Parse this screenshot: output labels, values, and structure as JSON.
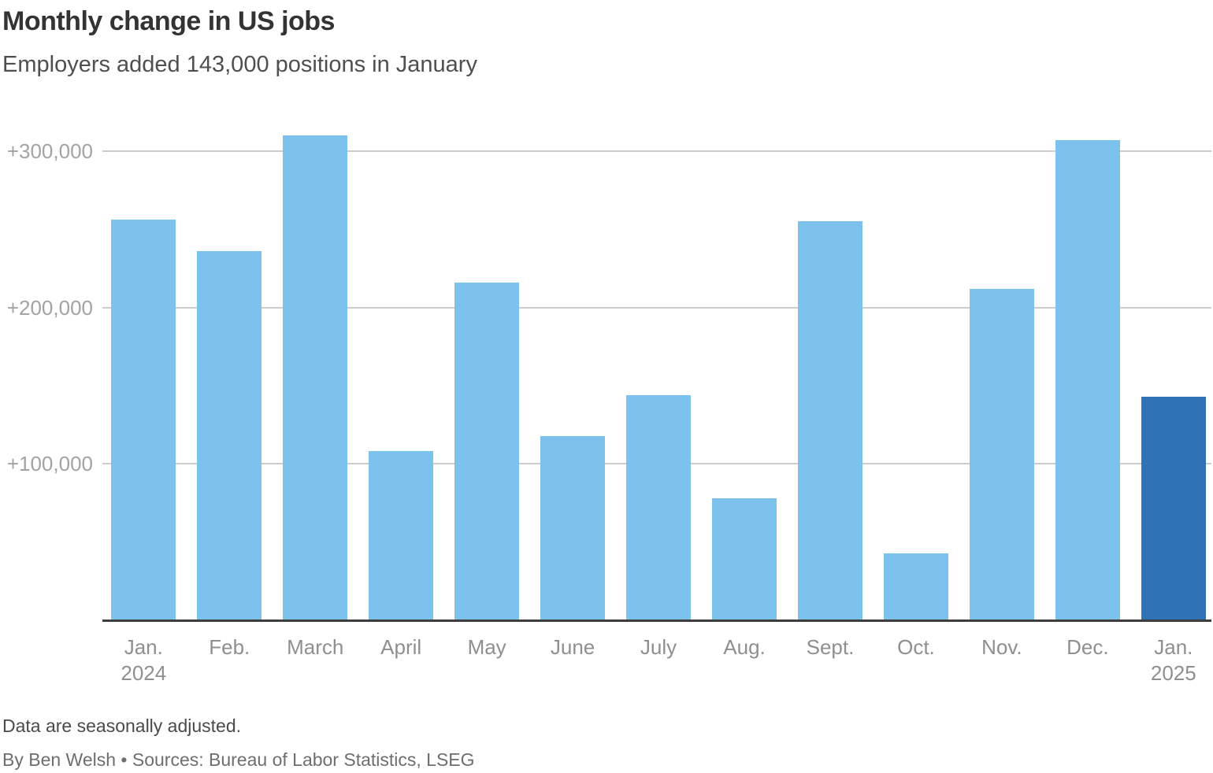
{
  "header": {
    "title": "Monthly change in US jobs",
    "subtitle": "Employers added 143,000 positions in January"
  },
  "chart_data": {
    "type": "bar",
    "title": "Monthly change in US jobs",
    "subtitle": "Employers added 143,000 positions in January",
    "categories": [
      "Jan.",
      "Feb.",
      "March",
      "April",
      "May",
      "June",
      "July",
      "Aug.",
      "Sept.",
      "Oct.",
      "Nov.",
      "Dec.",
      "Jan."
    ],
    "sublabels": [
      "2024",
      "",
      "",
      "",
      "",
      "",
      "",
      "",
      "",
      "",
      "",
      "",
      "2025"
    ],
    "values": [
      256000,
      236000,
      310000,
      108000,
      216000,
      118000,
      144000,
      78000,
      255000,
      43000,
      212000,
      307000,
      143000
    ],
    "highlight_index": 12,
    "xlabel": "",
    "ylabel": "",
    "ylim": [
      0,
      330000
    ],
    "yticks": [
      {
        "value": 100000,
        "label": "+100,000"
      },
      {
        "value": 200000,
        "label": "+200,000"
      },
      {
        "value": 300000,
        "label": "+300,000"
      }
    ],
    "grid": true,
    "legend_position": "none",
    "bar_color": "#7dc2ec",
    "highlight_color": "#2f72b5",
    "gridline_color": "#cccccc",
    "axis_line_color": "#3d3d3d"
  },
  "footer": {
    "note": "Data are seasonally adjusted.",
    "byline": "By Ben Welsh • Sources: Bureau of Labor Statistics, LSEG"
  }
}
